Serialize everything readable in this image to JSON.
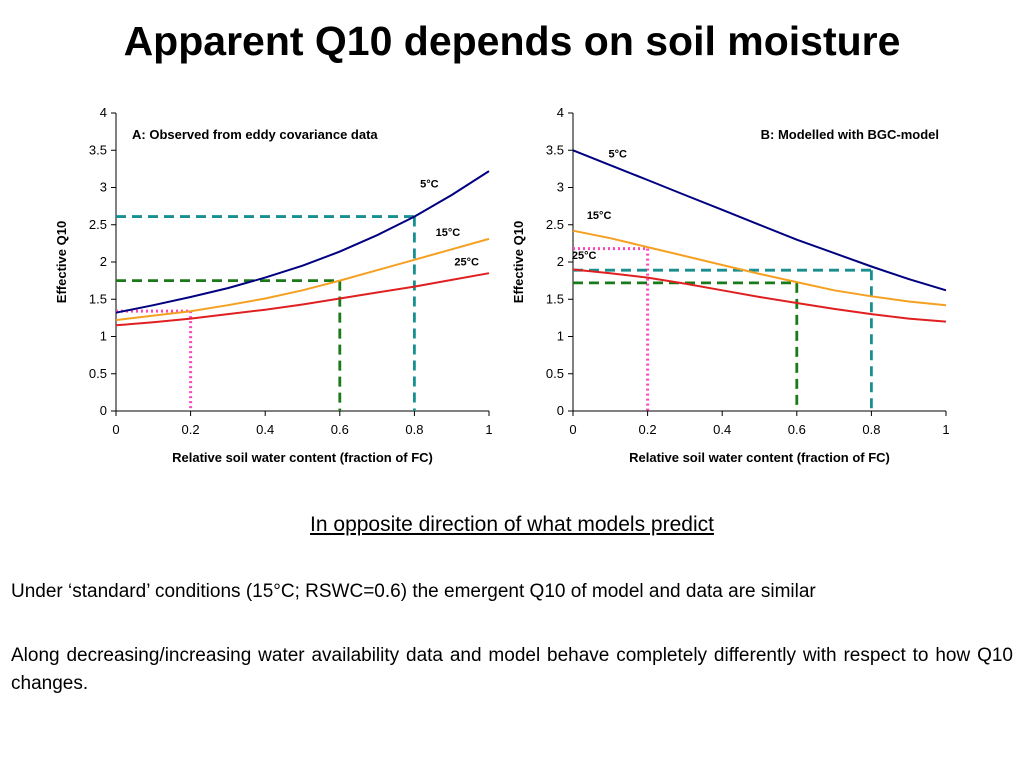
{
  "slide": {
    "title": "Apparent Q10 depends on soil moisture",
    "subtitle": "In opposite direction of what models predict",
    "paragraphs": [
      "Under ‘standard’ conditions (15°C; RSWC=0.6) the emergent Q10 of model and data are similar",
      "Along decreasing/increasing water availability data and model behave completely differently with respect to how Q10 changes."
    ]
  },
  "colors": {
    "line_5C": "#000080",
    "line_15C": "#f5a020",
    "line_25C": "#e02020",
    "ref_teal": "#1a8f8f",
    "ref_green": "#1a7a1a",
    "ref_pink": "#ff44bb"
  },
  "chart_data": [
    {
      "type": "line",
      "title": "A: Observed from eddy covariance data",
      "xlabel": "Relative soil water content (fraction of FC)",
      "ylabel": "Effective Q10",
      "xlim": [
        0,
        1
      ],
      "ylim": [
        0,
        4
      ],
      "x_ticks": [
        "0",
        "0.2",
        "0.4",
        "0.6",
        "0.8",
        "1"
      ],
      "y_ticks": [
        "0",
        "0.5",
        "1",
        "1.5",
        "2",
        "2.5",
        "3",
        "3.5",
        "4"
      ],
      "grid": false,
      "x": [
        0,
        0.1,
        0.2,
        0.3,
        0.4,
        0.5,
        0.6,
        0.7,
        0.8,
        0.9,
        1.0
      ],
      "series": [
        {
          "name": "5°C",
          "values": [
            1.32,
            1.42,
            1.53,
            1.65,
            1.79,
            1.95,
            2.14,
            2.36,
            2.61,
            2.9,
            3.22
          ]
        },
        {
          "name": "15°C",
          "values": [
            1.22,
            1.28,
            1.34,
            1.42,
            1.51,
            1.62,
            1.75,
            1.89,
            2.03,
            2.17,
            2.31
          ]
        },
        {
          "name": "25°C",
          "values": [
            1.15,
            1.19,
            1.24,
            1.3,
            1.36,
            1.43,
            1.51,
            1.59,
            1.67,
            1.76,
            1.85
          ]
        }
      ],
      "series_label_positions": [
        [
          0.84,
          3.0
        ],
        [
          0.89,
          2.35
        ],
        [
          0.94,
          1.95
        ]
      ],
      "reference_lines": [
        {
          "color": "teal",
          "style": "dashed",
          "x": 0.8,
          "y": 2.61
        },
        {
          "color": "green",
          "style": "dashed",
          "x": 0.6,
          "y": 1.75
        },
        {
          "color": "pink",
          "style": "dotted",
          "x": 0.2,
          "y": 1.34
        }
      ]
    },
    {
      "type": "line",
      "title": "B: Modelled with BGC-model",
      "xlabel": "Relative soil water content (fraction of FC)",
      "ylabel": "Effective Q10",
      "xlim": [
        0,
        1
      ],
      "ylim": [
        0,
        4
      ],
      "x_ticks": [
        "0",
        "0.2",
        "0.4",
        "0.6",
        "0.8",
        "1"
      ],
      "y_ticks": [
        "0",
        "0.5",
        "1",
        "1.5",
        "2",
        "2.5",
        "3",
        "3.5",
        "4"
      ],
      "grid": false,
      "x": [
        0,
        0.1,
        0.2,
        0.3,
        0.4,
        0.5,
        0.6,
        0.7,
        0.8,
        0.9,
        1.0
      ],
      "series": [
        {
          "name": "5°C",
          "values": [
            3.5,
            3.3,
            3.1,
            2.9,
            2.7,
            2.5,
            2.3,
            2.12,
            1.94,
            1.77,
            1.62
          ]
        },
        {
          "name": "15°C",
          "values": [
            2.42,
            2.32,
            2.2,
            2.08,
            1.96,
            1.84,
            1.73,
            1.62,
            1.54,
            1.47,
            1.42
          ]
        },
        {
          "name": "25°C",
          "values": [
            1.9,
            1.85,
            1.79,
            1.71,
            1.62,
            1.53,
            1.45,
            1.37,
            1.3,
            1.24,
            1.2
          ]
        }
      ],
      "series_label_positions": [
        [
          0.12,
          3.4
        ],
        [
          0.07,
          2.58
        ],
        [
          0.03,
          2.04
        ]
      ],
      "reference_lines": [
        {
          "color": "pink",
          "style": "dotted",
          "x": 0.2,
          "y": 2.18
        },
        {
          "color": "teal",
          "style": "dashed",
          "x": 0.8,
          "y": 1.89
        },
        {
          "color": "green",
          "style": "dashed",
          "x": 0.6,
          "y": 1.72
        }
      ]
    }
  ]
}
